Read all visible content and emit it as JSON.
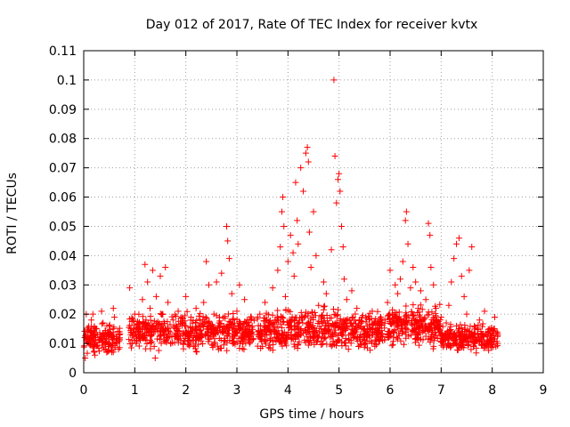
{
  "chart_data": {
    "type": "scatter",
    "title": "Day 012 of 2017, Rate Of TEC Index for receiver kvtx",
    "xlabel": "GPS time / hours",
    "ylabel": "ROTI / TECUs",
    "xlim": [
      0,
      9
    ],
    "ylim": [
      0,
      0.11
    ],
    "x_ticks": [
      "0",
      "1",
      "2",
      "3",
      "4",
      "5",
      "6",
      "7",
      "8",
      "9"
    ],
    "y_ticks": [
      "0",
      "0.01",
      "0.02",
      "0.03",
      "0.04",
      "0.05",
      "0.06",
      "0.07",
      "0.08",
      "0.09",
      "0.1",
      "0.11"
    ],
    "grid": true,
    "marker": "plus",
    "color": "#ff0000",
    "series": [
      {
        "points": [
          [
            0.02,
            0.012
          ],
          [
            0.03,
            0.005
          ],
          [
            0.05,
            0.02
          ],
          [
            0.08,
            0.014
          ],
          [
            0.1,
            0.01
          ],
          [
            0.15,
            0.018
          ],
          [
            0.2,
            0.009
          ],
          [
            0.25,
            0.015
          ],
          [
            0.3,
            0.011
          ],
          [
            0.35,
            0.021
          ],
          [
            0.4,
            0.013
          ],
          [
            0.45,
            0.007
          ],
          [
            0.5,
            0.016
          ],
          [
            0.55,
            0.012
          ],
          [
            0.6,
            0.019
          ],
          [
            0.65,
            0.01
          ],
          [
            0.7,
            0.014
          ],
          [
            0.18,
            0.02
          ],
          [
            0.22,
            0.006
          ],
          [
            0.38,
            0.017
          ],
          [
            0.48,
            0.009
          ],
          [
            0.58,
            0.022
          ],
          [
            0.68,
            0.008
          ],
          [
            0.9,
            0.029
          ],
          [
            0.92,
            0.013
          ],
          [
            0.95,
            0.01
          ],
          [
            1.0,
            0.02
          ],
          [
            1.05,
            0.015
          ],
          [
            1.1,
            0.012
          ],
          [
            1.15,
            0.025
          ],
          [
            1.2,
            0.037
          ],
          [
            1.22,
            0.018
          ],
          [
            1.25,
            0.031
          ],
          [
            1.3,
            0.022
          ],
          [
            1.35,
            0.035
          ],
          [
            1.38,
            0.009
          ],
          [
            1.4,
            0.005
          ],
          [
            1.42,
            0.026
          ],
          [
            1.45,
            0.014
          ],
          [
            1.5,
            0.033
          ],
          [
            1.55,
            0.02
          ],
          [
            1.6,
            0.036
          ],
          [
            1.62,
            0.012
          ],
          [
            1.65,
            0.024
          ],
          [
            1.7,
            0.01
          ],
          [
            1.75,
            0.018
          ],
          [
            1.8,
            0.015
          ],
          [
            1.85,
            0.021
          ],
          [
            1.9,
            0.011
          ],
          [
            1.95,
            0.017
          ],
          [
            2.0,
            0.026
          ],
          [
            2.05,
            0.013
          ],
          [
            2.1,
            0.019
          ],
          [
            2.15,
            0.009
          ],
          [
            2.2,
            0.022
          ],
          [
            2.25,
            0.016
          ],
          [
            2.3,
            0.012
          ],
          [
            2.35,
            0.024
          ],
          [
            2.4,
            0.038
          ],
          [
            2.45,
            0.03
          ],
          [
            2.5,
            0.014
          ],
          [
            2.55,
            0.02
          ],
          [
            2.6,
            0.031
          ],
          [
            2.65,
            0.017
          ],
          [
            2.7,
            0.034
          ],
          [
            2.75,
            0.011
          ],
          [
            2.8,
            0.05
          ],
          [
            2.82,
            0.045
          ],
          [
            2.85,
            0.039
          ],
          [
            2.9,
            0.027
          ],
          [
            2.95,
            0.015
          ],
          [
            3.0,
            0.021
          ],
          [
            3.05,
            0.03
          ],
          [
            3.1,
            0.012
          ],
          [
            3.15,
            0.025
          ],
          [
            3.2,
            0.018
          ],
          [
            3.25,
            0.01
          ],
          [
            3.3,
            0.016
          ],
          [
            3.4,
            0.013
          ],
          [
            3.45,
            0.02
          ],
          [
            3.5,
            0.009
          ],
          [
            3.55,
            0.024
          ],
          [
            3.6,
            0.015
          ],
          [
            3.65,
            0.011
          ],
          [
            3.7,
            0.029
          ],
          [
            3.75,
            0.018
          ],
          [
            3.8,
            0.035
          ],
          [
            3.85,
            0.043
          ],
          [
            3.88,
            0.055
          ],
          [
            3.9,
            0.06
          ],
          [
            3.92,
            0.05
          ],
          [
            3.95,
            0.026
          ],
          [
            4.0,
            0.038
          ],
          [
            4.05,
            0.047
          ],
          [
            4.1,
            0.041
          ],
          [
            4.12,
            0.033
          ],
          [
            4.15,
            0.065
          ],
          [
            4.18,
            0.052
          ],
          [
            4.2,
            0.044
          ],
          [
            4.25,
            0.07
          ],
          [
            4.3,
            0.062
          ],
          [
            4.35,
            0.075
          ],
          [
            4.38,
            0.077
          ],
          [
            4.4,
            0.072
          ],
          [
            4.42,
            0.048
          ],
          [
            4.45,
            0.036
          ],
          [
            4.5,
            0.055
          ],
          [
            4.55,
            0.04
          ],
          [
            4.6,
            0.023
          ],
          [
            4.65,
            0.019
          ],
          [
            4.7,
            0.031
          ],
          [
            4.75,
            0.027
          ],
          [
            4.8,
            0.014
          ],
          [
            4.85,
            0.042
          ],
          [
            4.9,
            0.1
          ],
          [
            4.92,
            0.074
          ],
          [
            4.95,
            0.058
          ],
          [
            4.98,
            0.066
          ],
          [
            5.0,
            0.068
          ],
          [
            5.02,
            0.062
          ],
          [
            5.05,
            0.05
          ],
          [
            5.08,
            0.043
          ],
          [
            5.1,
            0.032
          ],
          [
            5.15,
            0.025
          ],
          [
            5.2,
            0.018
          ],
          [
            5.25,
            0.028
          ],
          [
            5.3,
            0.015
          ],
          [
            5.35,
            0.022
          ],
          [
            5.4,
            0.012
          ],
          [
            5.45,
            0.019
          ],
          [
            5.5,
            0.01
          ],
          [
            5.55,
            0.016
          ],
          [
            5.6,
            0.013
          ],
          [
            5.65,
            0.021
          ],
          [
            5.7,
            0.009
          ],
          [
            5.75,
            0.017
          ],
          [
            5.8,
            0.014
          ],
          [
            5.85,
            0.011
          ],
          [
            5.9,
            0.018
          ],
          [
            5.95,
            0.024
          ],
          [
            6.0,
            0.035
          ],
          [
            6.05,
            0.02
          ],
          [
            6.1,
            0.03
          ],
          [
            6.15,
            0.027
          ],
          [
            6.2,
            0.032
          ],
          [
            6.25,
            0.038
          ],
          [
            6.3,
            0.052
          ],
          [
            6.32,
            0.055
          ],
          [
            6.35,
            0.044
          ],
          [
            6.4,
            0.029
          ],
          [
            6.45,
            0.036
          ],
          [
            6.5,
            0.031
          ],
          [
            6.55,
            0.022
          ],
          [
            6.6,
            0.028
          ],
          [
            6.65,
            0.018
          ],
          [
            6.7,
            0.025
          ],
          [
            6.75,
            0.051
          ],
          [
            6.78,
            0.047
          ],
          [
            6.8,
            0.036
          ],
          [
            6.85,
            0.03
          ],
          [
            6.9,
            0.022
          ],
          [
            6.95,
            0.015
          ],
          [
            7.0,
            0.019
          ],
          [
            7.05,
            0.012
          ],
          [
            7.1,
            0.017
          ],
          [
            7.15,
            0.023
          ],
          [
            7.2,
            0.031
          ],
          [
            7.25,
            0.039
          ],
          [
            7.3,
            0.044
          ],
          [
            7.35,
            0.046
          ],
          [
            7.4,
            0.033
          ],
          [
            7.45,
            0.026
          ],
          [
            7.5,
            0.02
          ],
          [
            7.55,
            0.035
          ],
          [
            7.6,
            0.043
          ],
          [
            7.65,
            0.016
          ],
          [
            7.7,
            0.011
          ],
          [
            7.75,
            0.018
          ],
          [
            7.8,
            0.013
          ],
          [
            7.85,
            0.021
          ],
          [
            7.9,
            0.009
          ],
          [
            7.95,
            0.015
          ],
          [
            8.0,
            0.012
          ],
          [
            8.05,
            0.019
          ],
          [
            8.1,
            0.01
          ]
        ]
      }
    ],
    "bands": [
      {
        "x_start": 0.0,
        "x_end": 0.72,
        "y_low": 0.005,
        "y_high": 0.018,
        "count": 160
      },
      {
        "x_start": 0.88,
        "x_end": 3.35,
        "y_low": 0.006,
        "y_high": 0.022,
        "count": 520
      },
      {
        "x_start": 3.4,
        "x_end": 5.9,
        "y_low": 0.005,
        "y_high": 0.024,
        "count": 560
      },
      {
        "x_start": 5.95,
        "x_end": 7.0,
        "y_low": 0.007,
        "y_high": 0.025,
        "count": 260
      },
      {
        "x_start": 7.0,
        "x_end": 8.12,
        "y_low": 0.006,
        "y_high": 0.018,
        "count": 240
      }
    ]
  }
}
